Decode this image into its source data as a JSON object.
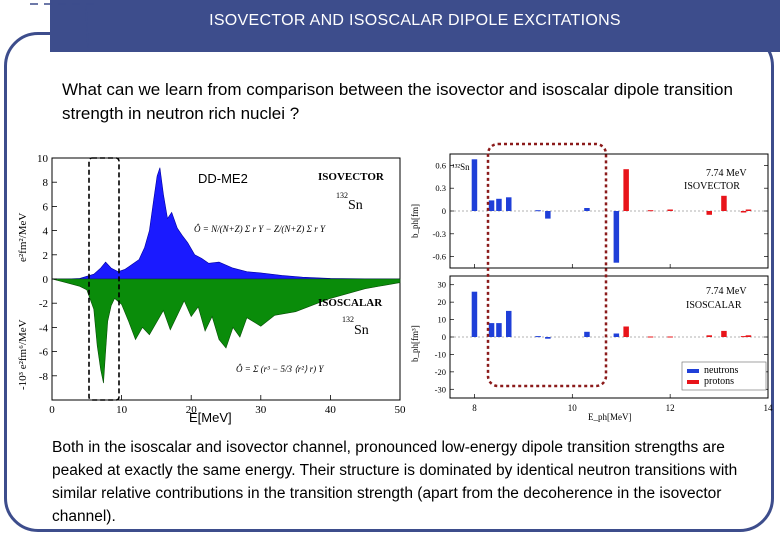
{
  "slide": {
    "title": "ISOVECTOR AND ISOSCALAR DIPOLE EXCITATIONS",
    "question": "What can we learn from comparison between the isovector and isoscalar dipole transition strength in neutron rich nuclei ?",
    "conclusion": "Both in the isoscalar and isovector channel, pronounced low-energy dipole transition strengths are peaked at exactly the same energy. Their structure is dominated by identical neutron transitions with similar relative contributions in the transition strength (apart from the decoherence in the isovector channel)."
  },
  "left_plot": {
    "model_label": "DD-ME2",
    "top_channel": "ISOVECTOR",
    "bottom_channel": "ISOSCALAR",
    "nucleus": "132Sn",
    "nucleus_mass": "132",
    "nucleus_symbol": "Sn",
    "xlabel": "E[MeV]",
    "ylabel_top": "e²fm²/MeV",
    "ylabel_bottom": "-10³ e²fm⁶/MeV",
    "y_ticks": [
      "10",
      "8",
      "6",
      "4",
      "2",
      "0",
      "-2",
      "-4",
      "-6",
      "-8"
    ],
    "x_ticks": [
      "0",
      "10",
      "20",
      "30",
      "40",
      "50"
    ],
    "colors": {
      "isovector": "#1a1aff",
      "isoscalar": "#0a8c0a"
    }
  },
  "right_plot": {
    "nucleus": "132Sn",
    "top_annotation_energy": "7.74 MeV",
    "top_annotation_channel": "ISOVECTOR",
    "bottom_annotation_energy": "7.74 MeV",
    "bottom_annotation_channel": "ISOSCALAR",
    "xlabel": "E_ph[MeV]",
    "ylabel_top": "b_ph[fm]",
    "ylabel_bottom": "b_ph[fm³]",
    "top_y_ticks": [
      "0.6",
      "0.3",
      "0",
      "-0.3",
      "-0.6"
    ],
    "bottom_y_ticks": [
      "30",
      "20",
      "10",
      "0",
      "-10",
      "-20",
      "-30"
    ],
    "x_ticks": [
      "8",
      "10",
      "12",
      "14"
    ],
    "legend": [
      "neutrons",
      "protons"
    ],
    "colors": {
      "neutrons": "#1f3fd8",
      "protons": "#e8141a",
      "highlight": "#8b1a1a"
    }
  },
  "chart_data": [
    {
      "type": "area",
      "title": "",
      "xlabel": "E[MeV]",
      "ylabel": "e²fm²/MeV (isovector, top); -10³ e²fm⁶/MeV (isoscalar, bottom)",
      "xlim": [
        0,
        50
      ],
      "ylim": [
        -10,
        10
      ],
      "series": [
        {
          "name": "ISOVECTOR",
          "x": [
            0,
            2,
            4,
            6,
            7,
            7.7,
            8.5,
            9.5,
            10.5,
            11.5,
            12.5,
            13.3,
            14,
            14.6,
            15.1,
            15.5,
            16,
            16.6,
            17.2,
            18,
            18.7,
            19.5,
            20.5,
            21.5,
            22.5,
            24,
            26,
            28,
            30,
            33,
            36,
            40,
            45,
            50
          ],
          "y": [
            0,
            0,
            0.05,
            0.4,
            0.9,
            1.4,
            0.9,
            0.6,
            0.8,
            1.2,
            1.6,
            2.6,
            4.0,
            6.5,
            8.5,
            9.2,
            7.0,
            5.0,
            5.5,
            4.2,
            3.6,
            3.0,
            2.0,
            1.7,
            1.3,
            1.4,
            0.9,
            0.6,
            0.5,
            0.3,
            0.15,
            0.05,
            0.02,
            0
          ]
        },
        {
          "name": "ISOSCALAR",
          "x": [
            0,
            2,
            4,
            5,
            6,
            6.5,
            7,
            7.4,
            7.7,
            8,
            8.5,
            9,
            10,
            11,
            12,
            13,
            14,
            15,
            16,
            17,
            18,
            19,
            20,
            21,
            22,
            23,
            24,
            25,
            26,
            27,
            28,
            30,
            32,
            35,
            40,
            45,
            50
          ],
          "y": [
            0,
            -0.3,
            -0.6,
            -0.9,
            -2.5,
            -5.5,
            -7.5,
            -8.6,
            -6.0,
            -3.5,
            -2.2,
            -1.6,
            -2.1,
            -3.5,
            -5.0,
            -4.0,
            -4.6,
            -3.6,
            -2.6,
            -4.2,
            -3.0,
            -1.8,
            -3.1,
            -2.3,
            -4.3,
            -3.1,
            -5.0,
            -5.7,
            -4.0,
            -4.8,
            -3.2,
            -3.9,
            -3.0,
            -2.7,
            -1.6,
            -0.8,
            -0.3
          ]
        }
      ]
    },
    {
      "type": "bar",
      "title": "7.74 MeV ISOVECTOR",
      "xlabel": "E_ph[MeV]",
      "ylabel": "b_ph[fm]",
      "xlim": [
        7.5,
        14
      ],
      "ylim": [
        -0.75,
        0.75
      ],
      "series": [
        {
          "name": "neutrons",
          "x": [
            8.0,
            8.35,
            8.5,
            8.7,
            9.3,
            9.5,
            10.3,
            10.9
          ],
          "y": [
            0.68,
            0.14,
            0.16,
            0.18,
            0.01,
            -0.1,
            0.04,
            -0.68
          ]
        },
        {
          "name": "protons",
          "x": [
            11.1,
            11.6,
            12.0,
            12.8,
            13.1,
            13.5,
            13.6
          ],
          "y": [
            0.55,
            0.01,
            0.02,
            -0.05,
            0.2,
            -0.02,
            0.02
          ]
        }
      ]
    },
    {
      "type": "bar",
      "title": "7.74 MeV ISOSCALAR",
      "xlabel": "E_ph[MeV]",
      "ylabel": "b_ph[fm³]",
      "xlim": [
        7.5,
        14
      ],
      "ylim": [
        -35,
        35
      ],
      "series": [
        {
          "name": "neutrons",
          "x": [
            8.0,
            8.35,
            8.5,
            8.7,
            9.3,
            9.5,
            10.3,
            10.9
          ],
          "y": [
            26,
            8,
            8,
            15,
            0.5,
            -1,
            3,
            2
          ]
        },
        {
          "name": "protons",
          "x": [
            11.1,
            11.6,
            12.0,
            12.8,
            13.1,
            13.5,
            13.6
          ],
          "y": [
            6,
            0.3,
            0.3,
            1,
            3.5,
            0.5,
            1
          ]
        }
      ]
    }
  ]
}
